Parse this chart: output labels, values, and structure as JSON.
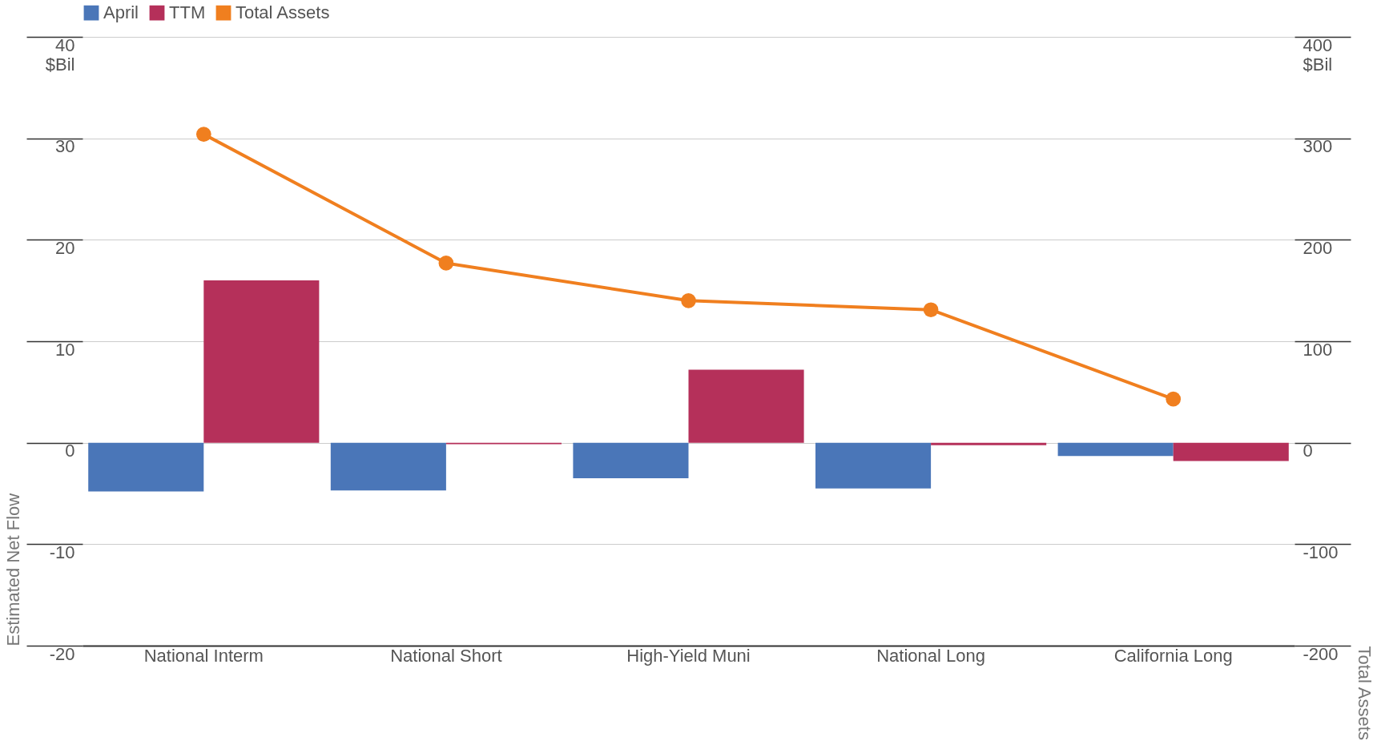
{
  "chart_data": {
    "type": "bar",
    "ylabel": "Estimated Net Flow",
    "y2label": "Total Assets",
    "categories": [
      "National Interm",
      "National Short",
      "High-Yield Muni",
      "National Long",
      "California Long"
    ],
    "series": [
      {
        "name": "April",
        "color": "#4a76b8",
        "values": [
          -4.8,
          -4.7,
          -3.5,
          -4.5,
          -1.3
        ]
      },
      {
        "name": "TTM",
        "color": "#b5305a",
        "values": [
          16.0,
          -0.15,
          7.2,
          -0.25,
          -1.8
        ]
      },
      {
        "name": "Total Assets",
        "type": "line",
        "axis": "y2",
        "color": "#f07f1f",
        "marker": "circle",
        "values": [
          304,
          177,
          140,
          131,
          43
        ]
      }
    ],
    "ylim": [
      -20,
      40
    ],
    "yticks": [
      -20,
      -10,
      0,
      10,
      20,
      30,
      {
        "value": 40,
        "label": "40\n$Bil"
      }
    ],
    "y2lim": [
      -200,
      400
    ],
    "y2ticks": [
      -200,
      -100,
      0,
      100,
      200,
      300,
      {
        "value": 400,
        "label": "400\n$Bil"
      }
    ],
    "grid": "y",
    "legend": "top left"
  }
}
